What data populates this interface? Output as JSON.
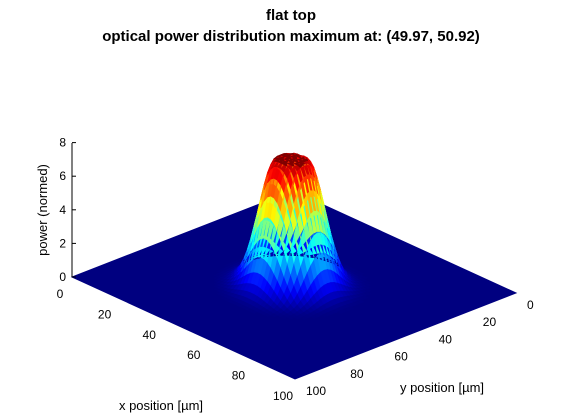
{
  "chart_data": {
    "type": "surface",
    "title": "flat top",
    "subtitle": "optical power distribution maximum at: (49.97, 50.92)",
    "xlabel": "x position [µm]",
    "ylabel": "y position  [µm]",
    "zlabel": "power (normed)",
    "xlim": [
      0,
      100
    ],
    "ylim": [
      0,
      100
    ],
    "zlim": [
      0,
      8
    ],
    "x_ticks": [
      "0",
      "20",
      "40",
      "60",
      "80",
      "100"
    ],
    "y_ticks": [
      "0",
      "20",
      "40",
      "60",
      "80",
      "100"
    ],
    "z_ticks": [
      "0",
      "2",
      "4",
      "6",
      "8"
    ],
    "peak": {
      "x": 49.97,
      "y": 50.92,
      "z": 7.5
    },
    "profile": "flat-top beam, plateau diameter about 10 µm, falls to 0 by about 25 µm from the peak",
    "colormap": "jet",
    "grid": false
  }
}
